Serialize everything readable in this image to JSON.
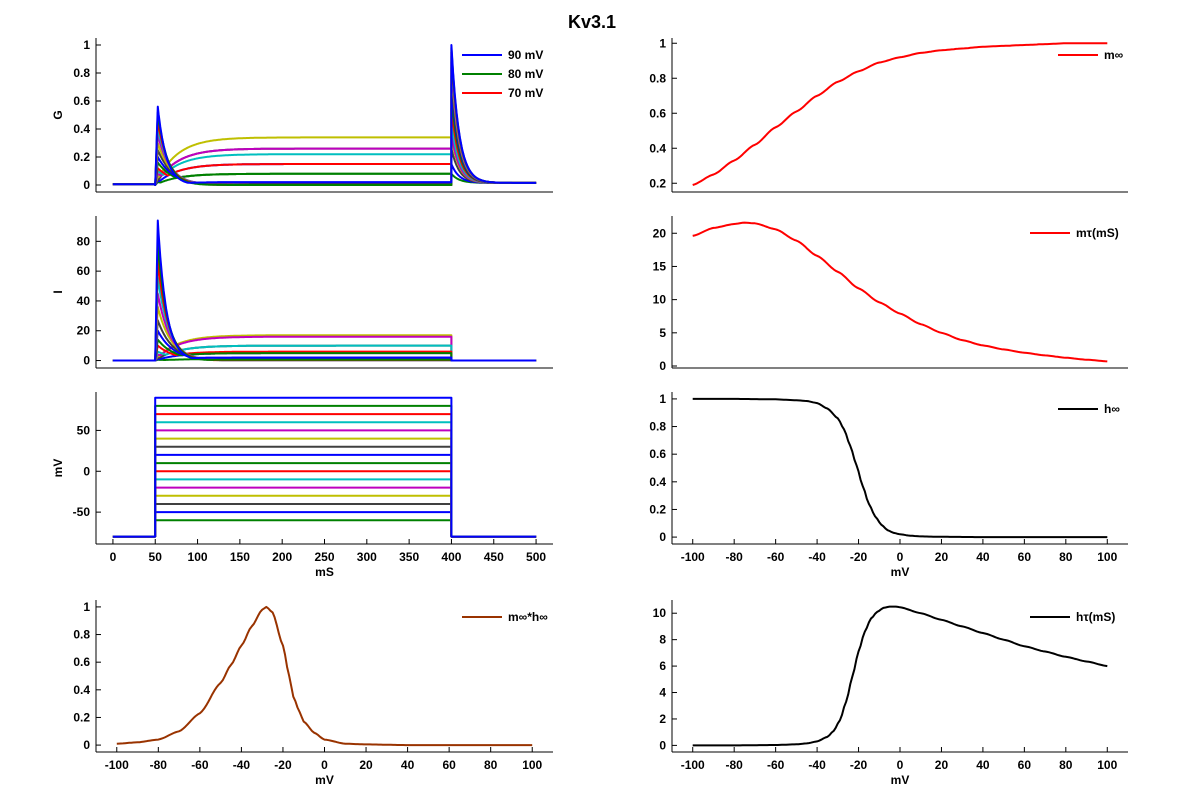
{
  "figure_title": "Kv3.1",
  "trace_colors": [
    "#0000ff",
    "#008000",
    "#ff0000",
    "#00bfbf",
    "#bf00bf",
    "#bfbf00",
    "#404040"
  ],
  "chart_data": [
    {
      "id": "conductance",
      "type": "line",
      "title": "",
      "xlabel": "",
      "ylabel": "G",
      "xlim": [
        -20,
        520
      ],
      "ylim": [
        -0.05,
        1.05
      ],
      "xticks": [],
      "yticks": [
        0,
        0.2,
        0.4,
        0.6,
        0.8,
        1
      ],
      "ytick_labels": [
        "0",
        "0.2",
        "0.4",
        "0.6",
        "0.8",
        "1"
      ],
      "legend": {
        "placement": "top-right",
        "entries": [
          {
            "label": "90 mV",
            "color": "#0000ff"
          },
          {
            "label": "80 mV",
            "color": "#008000"
          },
          {
            "label": "70 mV",
            "color": "#ff0000"
          }
        ]
      },
      "step_voltages_mV": [
        90,
        80,
        70,
        60,
        50,
        40,
        30,
        20,
        10,
        0,
        -10,
        -20,
        -30,
        -40,
        -50,
        -60
      ],
      "steady_state_G": [
        0.02,
        0.0,
        0.0,
        0.0,
        0.0,
        0.0,
        0.01,
        0.02,
        0.08,
        0.15,
        0.22,
        0.26,
        0.34,
        0.26,
        0.15,
        0.08
      ],
      "tail_peak_G": [
        1.0,
        0.98,
        0.95,
        0.92,
        0.88,
        0.84,
        0.78,
        0.72,
        0.64,
        0.55,
        0.45,
        0.37,
        0.34,
        0.26,
        0.15,
        0.08
      ],
      "onset_peak_G": [
        0.56,
        0.52,
        0.46,
        0.41,
        0.36,
        0.3,
        0.25,
        0.2,
        0.16,
        0.12,
        0.1,
        0.08,
        0.06,
        0.04,
        0.03,
        0.02
      ],
      "step_on_ms": 50,
      "step_off_ms": 400,
      "end_ms": 500,
      "holding_G": 0.005
    },
    {
      "id": "current",
      "type": "line",
      "title": "",
      "xlabel": "",
      "ylabel": "I",
      "xlim": [
        -20,
        520
      ],
      "ylim": [
        -5,
        97
      ],
      "xticks": [],
      "yticks": [
        0,
        20,
        40,
        60,
        80
      ],
      "ytick_labels": [
        "0",
        "20",
        "40",
        "60",
        "80"
      ],
      "step_voltages_mV": [
        90,
        80,
        70,
        60,
        50,
        40,
        30,
        20,
        10,
        0,
        -10,
        -20,
        -30,
        -40,
        -50,
        -60
      ],
      "onset_peak_I": [
        94,
        80,
        67,
        56,
        45,
        36,
        27,
        20,
        14,
        10,
        6,
        4,
        3,
        2,
        1,
        0.5
      ],
      "steady_state_I": [
        2,
        0.5,
        0.3,
        0.2,
        0.2,
        0.3,
        1,
        2,
        5,
        6,
        10,
        16,
        17,
        10,
        5,
        1
      ],
      "step_on_ms": 50,
      "step_off_ms": 400,
      "end_ms": 500
    },
    {
      "id": "voltage",
      "type": "line",
      "title": "",
      "xlabel": "mS",
      "ylabel": "mV",
      "xlim": [
        -20,
        520
      ],
      "ylim": [
        -89,
        97
      ],
      "xticks": [
        0,
        50,
        100,
        150,
        200,
        250,
        300,
        350,
        400,
        450,
        500
      ],
      "xtick_labels": [
        "0",
        "50",
        "100",
        "150",
        "200",
        "250",
        "300",
        "350",
        "400",
        "450",
        "500"
      ],
      "yticks": [
        -50,
        0,
        50
      ],
      "ytick_labels": [
        "-50",
        "0",
        "50"
      ],
      "holding_mV": -80,
      "step_voltages_mV": [
        90,
        80,
        70,
        60,
        50,
        40,
        30,
        20,
        10,
        0,
        -10,
        -20,
        -30,
        -40,
        -50,
        -60
      ],
      "step_on_ms": 50,
      "step_off_ms": 400,
      "end_ms": 500
    },
    {
      "id": "m_inf_h_inf",
      "type": "line",
      "title": "",
      "xlabel": "mV",
      "ylabel": "",
      "xlim": [
        -110,
        110
      ],
      "ylim": [
        -0.05,
        1.05
      ],
      "xticks": [
        -100,
        -80,
        -60,
        -40,
        -20,
        0,
        20,
        40,
        60,
        80,
        100
      ],
      "xtick_labels": [
        "-100",
        "-80",
        "-60",
        "-40",
        "-20",
        "0",
        "20",
        "40",
        "60",
        "80",
        "100"
      ],
      "yticks": [
        0,
        0.2,
        0.4,
        0.6,
        0.8,
        1
      ],
      "ytick_labels": [
        "0",
        "0.2",
        "0.4",
        "0.6",
        "0.8",
        "1"
      ],
      "legend": {
        "placement": "top-right",
        "entries": [
          {
            "label": "m∞*h∞",
            "color": "#993300"
          }
        ]
      },
      "series": [
        {
          "name": "m∞*h∞",
          "color": "#993300",
          "x": [
            -100,
            -90,
            -80,
            -70,
            -60,
            -50,
            -45,
            -40,
            -35,
            -30,
            -28,
            -25,
            -20,
            -17,
            -15,
            -12,
            -10,
            -5,
            0,
            10,
            20,
            40,
            60,
            80,
            100
          ],
          "y": [
            0.01,
            0.02,
            0.04,
            0.1,
            0.23,
            0.45,
            0.58,
            0.72,
            0.86,
            0.98,
            1.0,
            0.96,
            0.72,
            0.5,
            0.35,
            0.24,
            0.17,
            0.09,
            0.04,
            0.01,
            0.005,
            0.0,
            0.0,
            0.0,
            0.0
          ]
        }
      ]
    },
    {
      "id": "m_inf",
      "type": "line",
      "title": "",
      "xlabel": "",
      "ylabel": "",
      "xlim": [
        -110,
        110
      ],
      "ylim": [
        0.15,
        1.03
      ],
      "xticks": [],
      "yticks": [
        0.2,
        0.4,
        0.6,
        0.8,
        1
      ],
      "ytick_labels": [
        "0.2",
        "0.4",
        "0.6",
        "0.8",
        "1"
      ],
      "legend": {
        "placement": "top-right",
        "entries": [
          {
            "label": "m∞",
            "color": "#ff0000"
          }
        ]
      },
      "series": [
        {
          "name": "m∞",
          "color": "#ff0000",
          "x": [
            -100,
            -90,
            -80,
            -70,
            -60,
            -50,
            -40,
            -30,
            -20,
            -10,
            0,
            10,
            20,
            30,
            40,
            50,
            60,
            70,
            80,
            90,
            100
          ],
          "y": [
            0.19,
            0.25,
            0.33,
            0.42,
            0.52,
            0.61,
            0.7,
            0.78,
            0.84,
            0.89,
            0.92,
            0.945,
            0.96,
            0.97,
            0.98,
            0.985,
            0.99,
            0.995,
            1.0,
            1.0,
            1.0
          ]
        }
      ]
    },
    {
      "id": "m_tau",
      "type": "line",
      "title": "",
      "xlabel": "",
      "ylabel": "",
      "xlim": [
        -110,
        110
      ],
      "ylim": [
        -0.3,
        22.6
      ],
      "xticks": [],
      "yticks": [
        0,
        5,
        10,
        15,
        20
      ],
      "ytick_labels": [
        "0",
        "5",
        "10",
        "15",
        "20"
      ],
      "legend": {
        "placement": "top-right",
        "entries": [
          {
            "label": "mτ(mS)",
            "color": "#ff0000"
          }
        ]
      },
      "series": [
        {
          "name": "mτ(mS)",
          "color": "#ff0000",
          "x": [
            -100,
            -90,
            -80,
            -75,
            -70,
            -60,
            -50,
            -40,
            -30,
            -20,
            -10,
            0,
            10,
            20,
            30,
            40,
            50,
            60,
            70,
            80,
            90,
            100
          ],
          "y": [
            19.6,
            20.8,
            21.4,
            21.6,
            21.5,
            20.6,
            18.9,
            16.6,
            14.2,
            11.7,
            9.6,
            7.9,
            6.3,
            5.0,
            3.9,
            3.1,
            2.5,
            2.0,
            1.6,
            1.25,
            0.95,
            0.7
          ]
        }
      ]
    },
    {
      "id": "h_inf",
      "type": "line",
      "title": "",
      "xlabel": "mV",
      "ylabel": "",
      "xlim": [
        -110,
        110
      ],
      "ylim": [
        -0.05,
        1.05
      ],
      "xticks": [
        -100,
        -80,
        -60,
        -40,
        -20,
        0,
        20,
        40,
        60,
        80,
        100
      ],
      "xtick_labels": [
        "-100",
        "-80",
        "-60",
        "-40",
        "-20",
        "0",
        "20",
        "40",
        "60",
        "80",
        "100"
      ],
      "yticks": [
        0,
        0.2,
        0.4,
        0.6,
        0.8,
        1
      ],
      "ytick_labels": [
        "0",
        "0.2",
        "0.4",
        "0.6",
        "0.8",
        "1"
      ],
      "legend": {
        "placement": "top-right",
        "entries": [
          {
            "label": "h∞",
            "color": "#000000"
          }
        ]
      },
      "series": [
        {
          "name": "h∞",
          "color": "#000000",
          "x": [
            -100,
            -80,
            -60,
            -50,
            -45,
            -40,
            -35,
            -30,
            -27,
            -24,
            -21,
            -18,
            -15,
            -12,
            -9,
            -6,
            -3,
            0,
            5,
            10,
            20,
            40,
            60,
            80,
            100
          ],
          "y": [
            1.0,
            1.0,
            0.997,
            0.99,
            0.985,
            0.97,
            0.93,
            0.86,
            0.78,
            0.66,
            0.52,
            0.37,
            0.24,
            0.15,
            0.09,
            0.05,
            0.03,
            0.02,
            0.01,
            0.005,
            0.002,
            0.0,
            0.0,
            0.0,
            0.0
          ]
        }
      ]
    },
    {
      "id": "h_tau",
      "type": "line",
      "title": "",
      "xlabel": "mV",
      "ylabel": "",
      "xlim": [
        -110,
        110
      ],
      "ylim": [
        -0.5,
        11
      ],
      "xticks": [
        -100,
        -80,
        -60,
        -40,
        -20,
        0,
        20,
        40,
        60,
        80,
        100
      ],
      "xtick_labels": [
        "-100",
        "-80",
        "-60",
        "-40",
        "-20",
        "0",
        "20",
        "40",
        "60",
        "80",
        "100"
      ],
      "yticks": [
        0,
        2,
        4,
        6,
        8,
        10
      ],
      "ytick_labels": [
        "0",
        "2",
        "4",
        "6",
        "8",
        "10"
      ],
      "legend": {
        "placement": "top-right",
        "entries": [
          {
            "label": "hτ(mS)",
            "color": "#000000"
          }
        ]
      },
      "series": [
        {
          "name": "hτ(mS)",
          "color": "#000000",
          "x": [
            -100,
            -80,
            -60,
            -50,
            -45,
            -40,
            -35,
            -32,
            -29,
            -26,
            -23,
            -20,
            -17,
            -14,
            -11,
            -8,
            -5,
            -2,
            0,
            10,
            20,
            30,
            40,
            50,
            60,
            70,
            80,
            90,
            100
          ],
          "y": [
            0.0,
            0.0,
            0.03,
            0.08,
            0.15,
            0.3,
            0.65,
            1.1,
            1.9,
            3.3,
            5.2,
            7.1,
            8.6,
            9.6,
            10.1,
            10.4,
            10.5,
            10.5,
            10.45,
            10.0,
            9.5,
            9.0,
            8.5,
            8.0,
            7.5,
            7.1,
            6.7,
            6.35,
            6.0
          ]
        }
      ]
    }
  ]
}
